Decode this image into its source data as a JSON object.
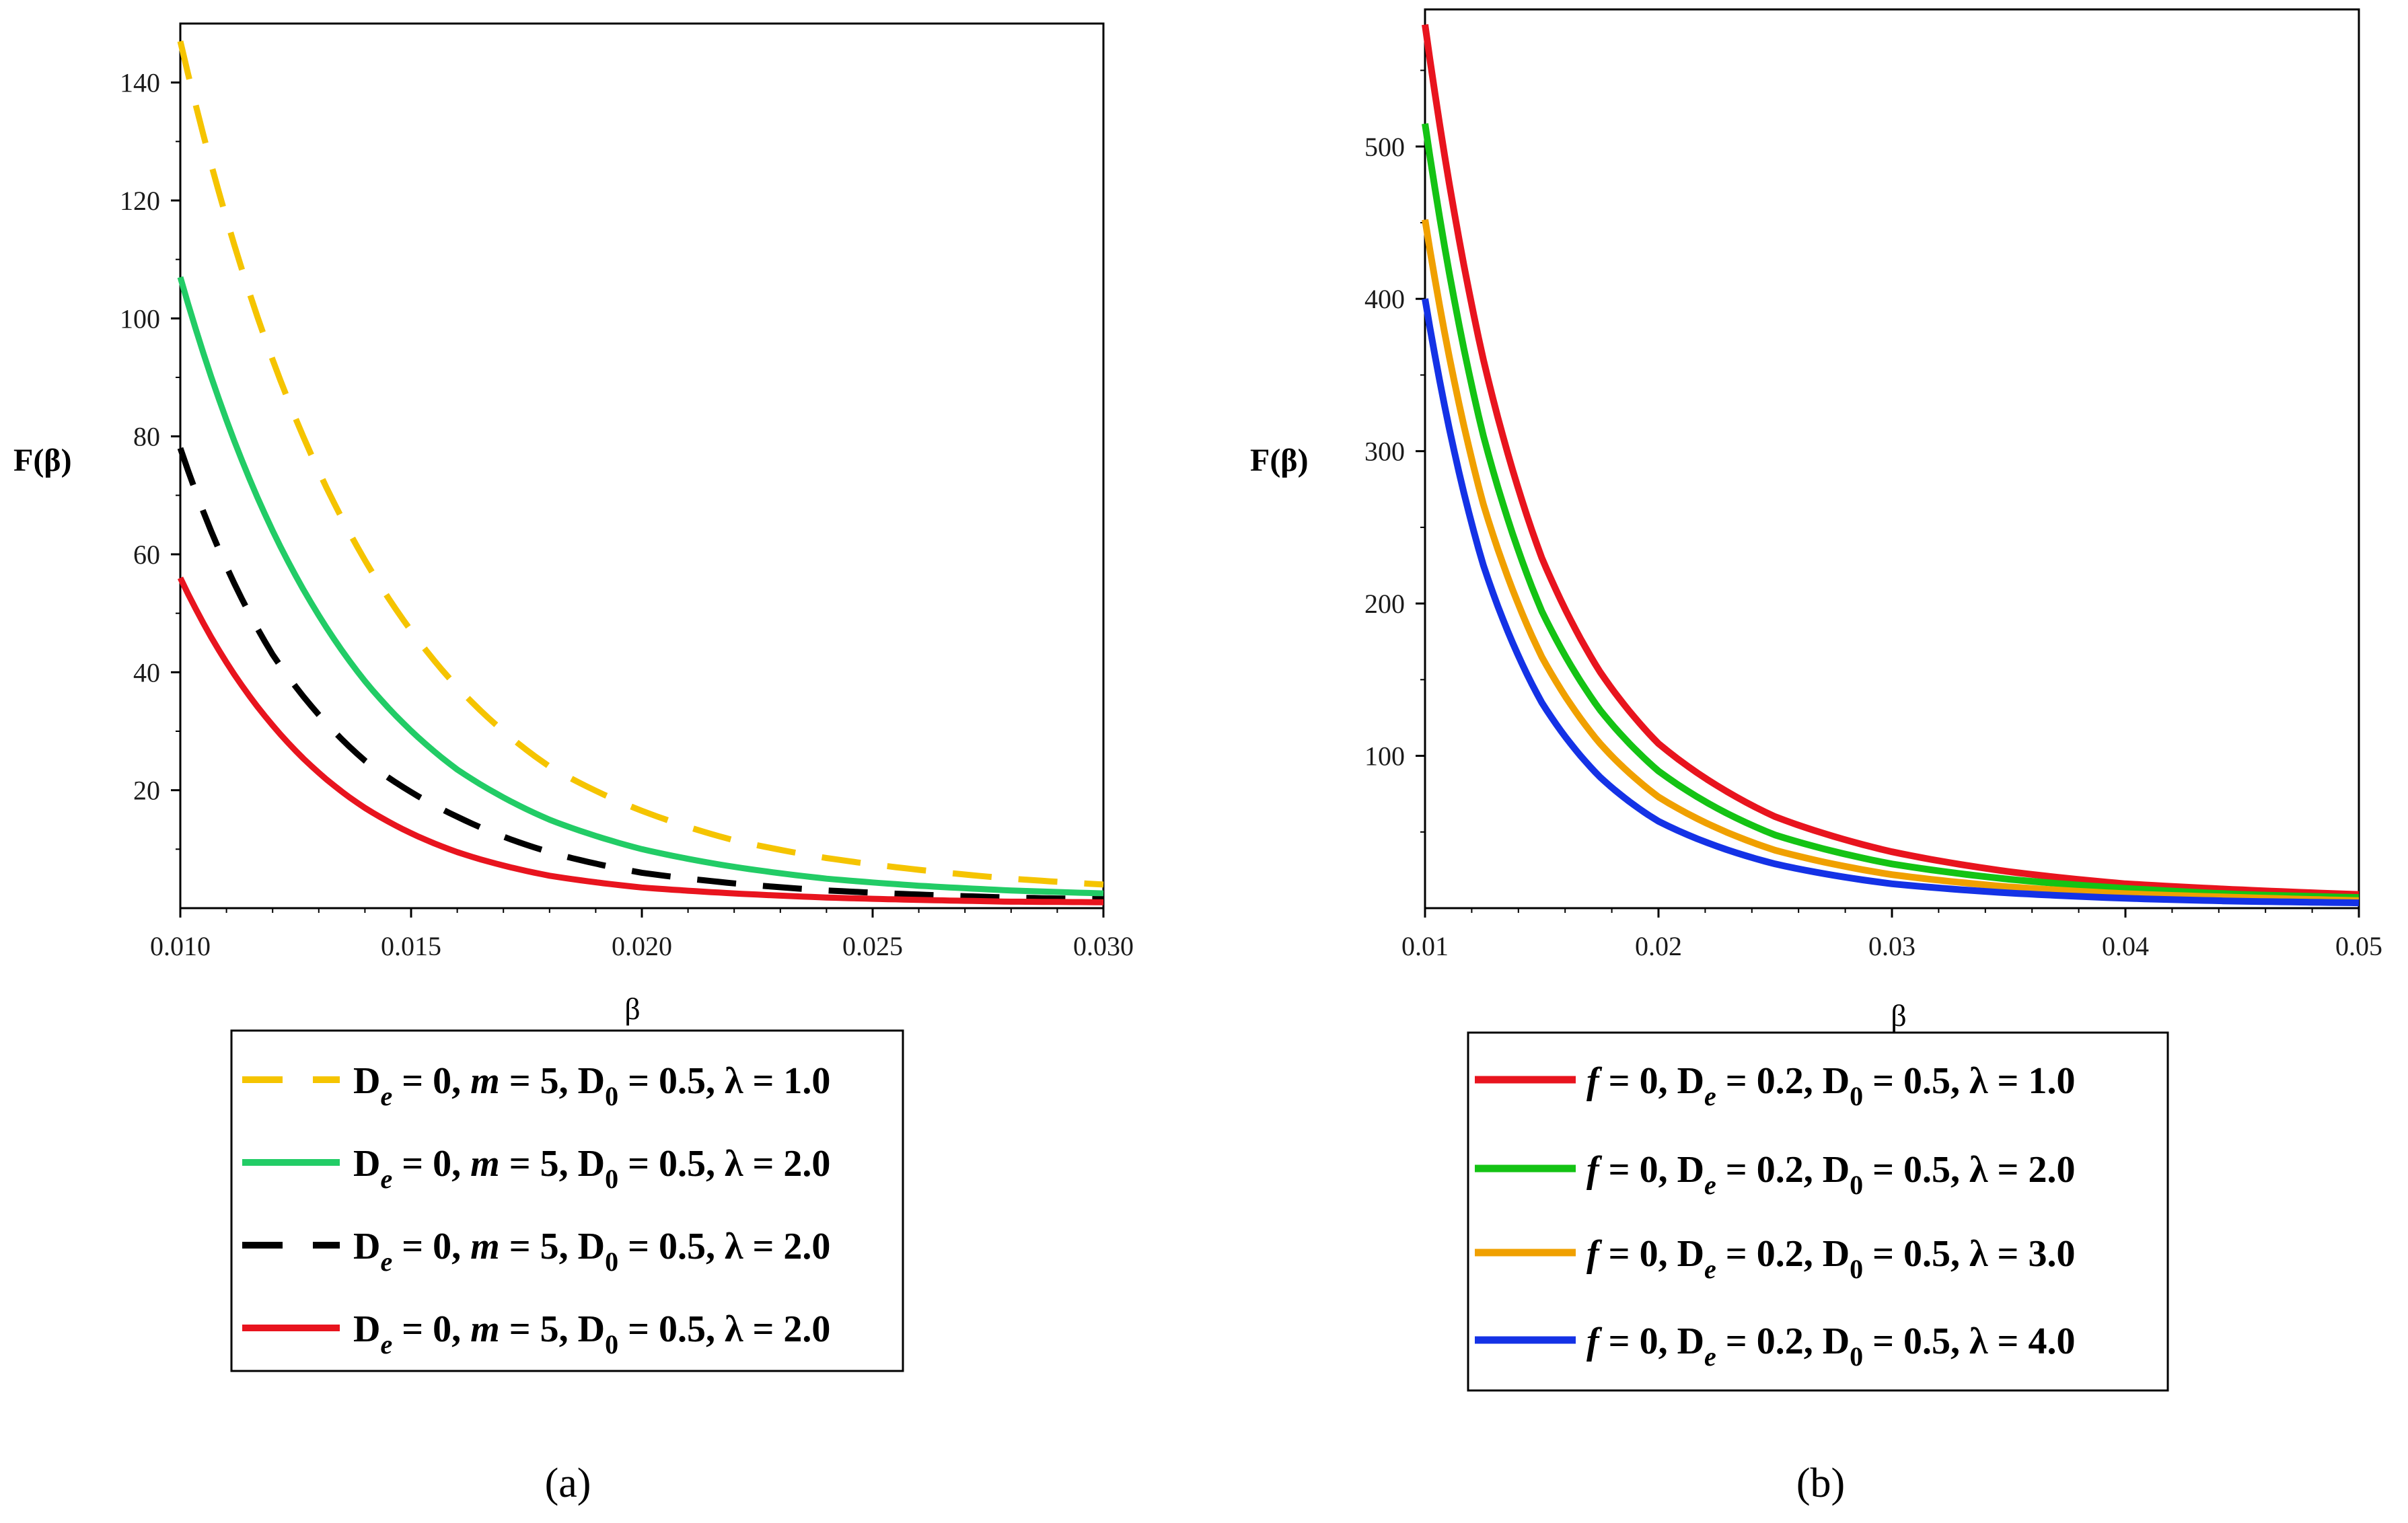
{
  "chart_data": [
    {
      "id": "a",
      "type": "line",
      "panel_label": "(a)",
      "xlabel": "β",
      "ylabel": "F(β)",
      "xlim": [
        0.01,
        0.03
      ],
      "ylim": [
        0,
        150
      ],
      "x_ticks": [
        "0.010",
        "0.015",
        "0.020",
        "0.025",
        "0.030"
      ],
      "x_tick_values": [
        0.01,
        0.015,
        0.02,
        0.025,
        0.03
      ],
      "y_ticks": [
        "20",
        "40",
        "60",
        "80",
        "100",
        "120",
        "140"
      ],
      "y_tick_values": [
        20,
        40,
        60,
        80,
        100,
        120,
        140
      ],
      "legend_position": "below",
      "series": [
        {
          "name": "De = 0, m = 5, D0 = 0.5, λ = 1.0",
          "color": "#f5c400",
          "style": "dashed",
          "x": [
            0.01,
            0.012,
            0.014,
            0.016,
            0.018,
            0.02,
            0.022,
            0.024,
            0.026,
            0.028,
            0.03
          ],
          "values": [
            147,
            93,
            59,
            37.5,
            24,
            16.5,
            11.5,
            8.5,
            6.5,
            5,
            4
          ]
        },
        {
          "name": "De = 0, m = 5, D0 = 0.5, λ = 2.0",
          "color": "#22cc66",
          "style": "solid",
          "x": [
            0.01,
            0.012,
            0.014,
            0.016,
            0.018,
            0.02,
            0.022,
            0.024,
            0.026,
            0.028,
            0.03
          ],
          "values": [
            107,
            64,
            38.5,
            23.5,
            15,
            10,
            7,
            5,
            3.8,
            3,
            2.5
          ]
        },
        {
          "name": "De = 0, m = 5, D0 = 0.5, λ = 2.0",
          "color": "#000000",
          "style": "dashed",
          "x": [
            0.01,
            0.012,
            0.014,
            0.016,
            0.018,
            0.02,
            0.022,
            0.024,
            0.026,
            0.028,
            0.03
          ],
          "values": [
            78,
            43,
            25,
            15.5,
            9.5,
            6,
            4.2,
            3,
            2.3,
            1.8,
            1.5
          ]
        },
        {
          "name": "De = 0, m = 5, D0 = 0.5, λ = 2.0",
          "color": "#e8141e",
          "style": "solid",
          "x": [
            0.01,
            0.012,
            0.014,
            0.016,
            0.018,
            0.02,
            0.022,
            0.024,
            0.026,
            0.028,
            0.03
          ],
          "values": [
            56,
            31,
            17,
            9.5,
            5.5,
            3.5,
            2.5,
            1.8,
            1.4,
            1.1,
            1
          ]
        }
      ]
    },
    {
      "id": "b",
      "type": "line",
      "panel_label": "(b)",
      "xlabel": "β",
      "ylabel": "F(β)",
      "xlim": [
        0.01,
        0.05
      ],
      "ylim": [
        0,
        590
      ],
      "x_ticks": [
        "0.01",
        "0.02",
        "0.03",
        "0.04",
        "0.05"
      ],
      "x_tick_values": [
        0.01,
        0.02,
        0.03,
        0.04,
        0.05
      ],
      "y_ticks": [
        "100",
        "200",
        "300",
        "400",
        "500"
      ],
      "y_tick_values": [
        100,
        200,
        300,
        400,
        500
      ],
      "legend_position": "below",
      "series": [
        {
          "name": "f = 0, De = 0.2, D0 = 0.5, λ = 1.0",
          "color": "#e8141e",
          "style": "solid",
          "x": [
            0.01,
            0.0125,
            0.015,
            0.0175,
            0.02,
            0.025,
            0.03,
            0.035,
            0.04,
            0.045,
            0.05
          ],
          "values": [
            580,
            360,
            230,
            155,
            108,
            60,
            37,
            24,
            16,
            12,
            9
          ]
        },
        {
          "name": "f = 0, De = 0.2, D0 = 0.5, λ = 2.0",
          "color": "#14c314",
          "style": "solid",
          "x": [
            0.01,
            0.0125,
            0.015,
            0.0175,
            0.02,
            0.025,
            0.03,
            0.035,
            0.04,
            0.045,
            0.05
          ],
          "values": [
            515,
            310,
            195,
            130,
            90,
            48,
            29,
            19,
            13,
            9,
            7
          ]
        },
        {
          "name": "f = 0, De = 0.2, D0 = 0.5, λ = 3.0",
          "color": "#f0a000",
          "style": "solid",
          "x": [
            0.01,
            0.0125,
            0.015,
            0.0175,
            0.02,
            0.025,
            0.03,
            0.035,
            0.04,
            0.045,
            0.05
          ],
          "values": [
            452,
            265,
            165,
            108,
            73,
            38,
            22,
            14,
            9.5,
            7,
            5
          ]
        },
        {
          "name": "f = 0, De = 0.2, D0 = 0.5, λ = 4.0",
          "color": "#1432e6",
          "style": "solid",
          "x": [
            0.01,
            0.0125,
            0.015,
            0.0175,
            0.02,
            0.025,
            0.03,
            0.035,
            0.04,
            0.045,
            0.05
          ],
          "values": [
            400,
            225,
            135,
            86,
            57,
            29,
            16,
            10,
            6.5,
            4.5,
            3.5
          ]
        }
      ]
    }
  ],
  "legends": {
    "a": [
      {
        "pre": "",
        "main": "D",
        "sub1": "e",
        "rest": " = 0, ",
        "it": "m",
        "rest2": " = 5, D",
        "sub2": "0",
        "rest3": " = 0.5, λ = 1.0"
      },
      {
        "pre": "",
        "main": "D",
        "sub1": "e",
        "rest": " = 0, ",
        "it": "m",
        "rest2": " = 5, D",
        "sub2": "0",
        "rest3": " = 0.5, λ = 2.0"
      },
      {
        "pre": "",
        "main": "D",
        "sub1": "e",
        "rest": " = 0, ",
        "it": "m",
        "rest2": " = 5, D",
        "sub2": "0",
        "rest3": " = 0.5, λ = 2.0"
      },
      {
        "pre": "",
        "main": "D",
        "sub1": "e",
        "rest": " = 0, ",
        "it": "m",
        "rest2": " = 5, D",
        "sub2": "0",
        "rest3": " = 0.5, λ = 2.0"
      }
    ],
    "b": [
      {
        "pre": "f",
        "main": " = 0, D",
        "sub1": "e",
        "rest": " = 0.2, D",
        "sub2": "0",
        "rest3": " = 0.5, λ = 1.0"
      },
      {
        "pre": "f",
        "main": " = 0, D",
        "sub1": "e",
        "rest": " = 0.2, D",
        "sub2": "0",
        "rest3": " = 0.5, λ = 2.0"
      },
      {
        "pre": "f",
        "main": " = 0, D",
        "sub1": "e",
        "rest": " = 0.2, D",
        "sub2": "0",
        "rest3": " = 0.5, λ = 3.0"
      },
      {
        "pre": "f",
        "main": " = 0, D",
        "sub1": "e",
        "rest": " = 0.2, D",
        "sub2": "0",
        "rest3": " = 0.5, λ = 4.0"
      }
    ]
  }
}
